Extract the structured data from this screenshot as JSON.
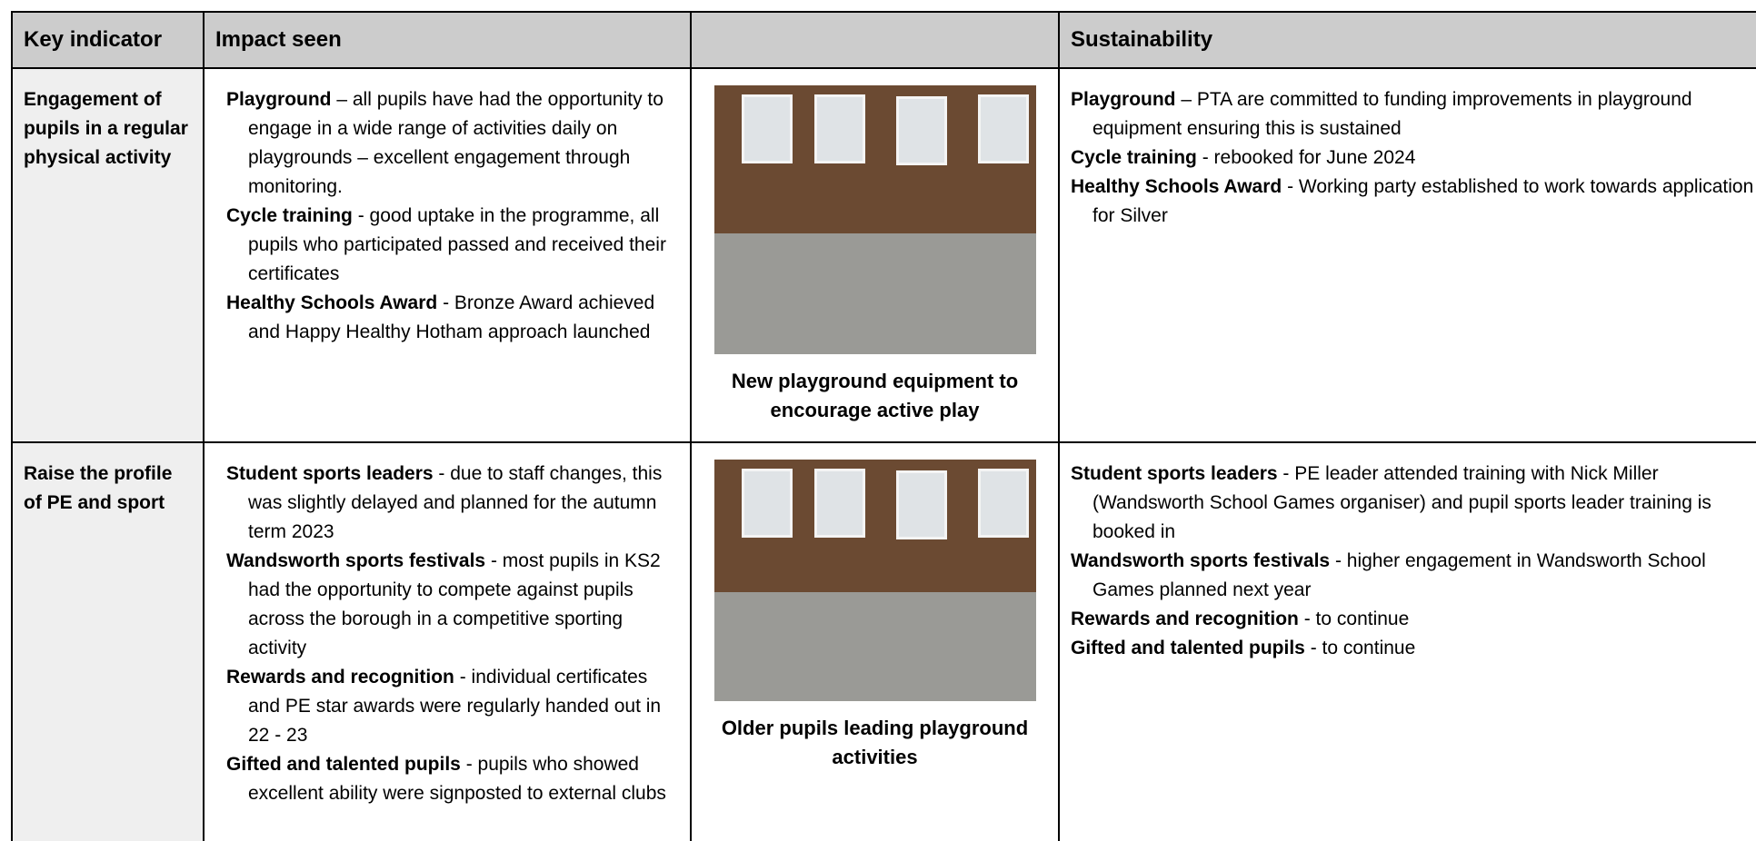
{
  "table": {
    "headers": [
      "Key indicator",
      "Impact seen",
      "Sustainability"
    ],
    "rows": [
      {
        "key": "Engagement of pupils in a regular physical activity",
        "impact": [
          {
            "label": "Playground",
            "text": " – all pupils have had the opportunity to engage in a wide range of activities daily on playgrounds – excellent engagement through monitoring."
          },
          {
            "label": "Cycle training",
            "text": " - good uptake in the programme, all pupils who participated passed and received their certificates"
          },
          {
            "label": "Healthy Schools Award",
            "text": " - Bronze Award achieved and Happy Healthy Hotham approach launched"
          }
        ],
        "caption": "New playground equipment to encourage active play",
        "sustainability": [
          {
            "label": "Playground",
            "text": " – PTA are committed to funding improvements in playground equipment ensuring this is sustained"
          },
          {
            "label": "Cycle training",
            "text": " - rebooked for June 2024"
          },
          {
            "label": "Healthy Schools Award",
            "text": " - Working party established to work towards application for Silver"
          }
        ]
      },
      {
        "key": "Raise the profile of PE and sport",
        "impact": [
          {
            "label": "Student sports leaders",
            "text": " - due to staff changes, this was slightly delayed and planned for the autumn term 2023"
          },
          {
            "label": "Wandsworth sports festivals",
            "text": " - most pupils in KS2 had the opportunity to compete against pupils across the borough in a competitive sporting activity"
          },
          {
            "label": "Rewards and recognition",
            "text": " - individual certificates and PE star awards were regularly handed out in 22 - 23"
          },
          {
            "label": "Gifted and talented pupils",
            "text": " - pupils who showed excellent ability were signposted to external clubs"
          }
        ],
        "caption": "Older pupils leading playground activities",
        "sustainability": [
          {
            "label": "Student sports leaders",
            "text": " - PE leader attended training with Nick Miller (Wandsworth School Games organiser) and pupil sports leader training is booked in"
          },
          {
            "label": "Wandsworth sports festivals",
            "text": " - higher engagement in Wandsworth School Games planned next year"
          },
          {
            "label": "Rewards and recognition",
            "text": " - to continue"
          },
          {
            "label": "Gifted and talented pupils",
            "text": " - to continue"
          }
        ]
      }
    ]
  }
}
